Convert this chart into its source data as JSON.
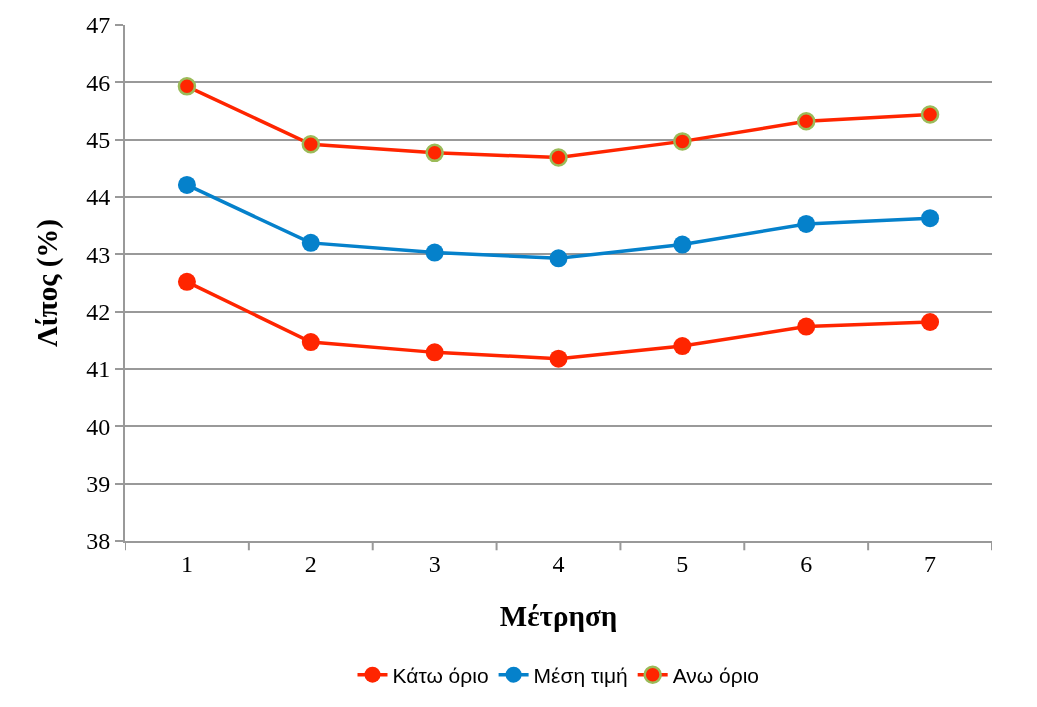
{
  "chart_data": {
    "type": "line",
    "xlabel": "Μέτρηση",
    "ylabel": "Λίπος (%)",
    "categories": [
      "1",
      "2",
      "3",
      "4",
      "5",
      "6",
      "7"
    ],
    "series": [
      {
        "name": "Κάτω όριο",
        "color": "#ff2500",
        "values": [
          42.52,
          41.47,
          41.29,
          41.18,
          41.4,
          41.74,
          41.82
        ]
      },
      {
        "name": "Μέση τιμή",
        "color": "#0581cb",
        "values": [
          44.21,
          43.2,
          43.03,
          42.93,
          43.17,
          43.53,
          43.63
        ]
      },
      {
        "name": "Ανω όριο",
        "color": "#ff2500",
        "values": [
          45.93,
          44.92,
          44.77,
          44.69,
          44.97,
          45.32,
          45.44
        ]
      }
    ],
    "ylim": [
      38,
      47
    ],
    "yticks": [
      38,
      39,
      40,
      41,
      42,
      43,
      44,
      45,
      46,
      47
    ],
    "grid": "y",
    "legend": "bottom",
    "marker": "circle",
    "line_style": "solid"
  }
}
